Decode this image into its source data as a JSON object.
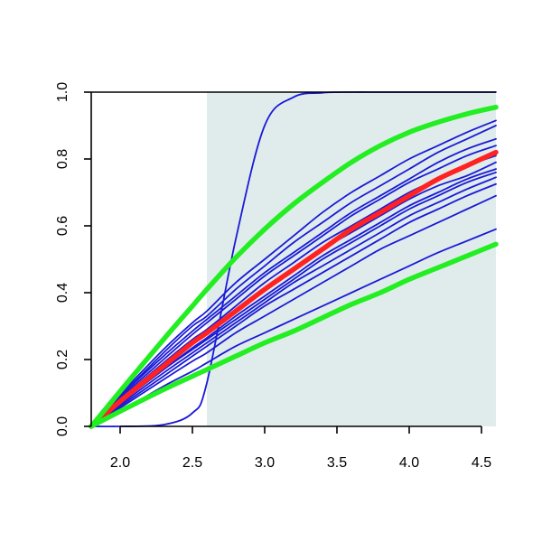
{
  "chart_data": {
    "type": "line",
    "title": "",
    "xlabel": "",
    "ylabel": "",
    "xlim": [
      1.8,
      4.6
    ],
    "ylim": [
      0.0,
      1.0
    ],
    "x_ticks": [
      2.0,
      2.5,
      3.0,
      3.5,
      4.0,
      4.5
    ],
    "x_tick_labels": [
      "2.0",
      "2.5",
      "3.0",
      "3.5",
      "4.0",
      "4.5"
    ],
    "y_ticks": [
      0.0,
      0.2,
      0.4,
      0.6,
      0.8,
      1.0
    ],
    "y_tick_labels": [
      "0.0",
      "0.2",
      "0.4",
      "0.6",
      "0.8",
      "1.0"
    ],
    "grid": false,
    "legend": "none",
    "shaded_region": {
      "x_start": 2.6,
      "x_end": 4.6,
      "color": "#e0ecec"
    },
    "colors": {
      "blue": "#1a1ad6",
      "red": "#ff2222",
      "green": "#22ee22",
      "axis": "#000000"
    },
    "x": [
      1.8,
      2.0,
      2.3,
      2.5,
      2.6,
      2.8,
      3.0,
      3.2,
      3.4,
      3.6,
      3.8,
      4.0,
      4.2,
      4.4,
      4.6
    ],
    "series": [
      {
        "color": "blue",
        "width": 1.8,
        "values": [
          0.0,
          0.09,
          0.21,
          0.285,
          0.32,
          0.39,
          0.46,
          0.52,
          0.58,
          0.64,
          0.69,
          0.74,
          0.79,
          0.83,
          0.86
        ]
      },
      {
        "color": "blue",
        "width": 1.8,
        "values": [
          0.0,
          0.085,
          0.2,
          0.275,
          0.31,
          0.38,
          0.45,
          0.51,
          0.57,
          0.63,
          0.68,
          0.73,
          0.77,
          0.81,
          0.84
        ]
      },
      {
        "color": "blue",
        "width": 1.8,
        "values": [
          0.0,
          0.09,
          0.22,
          0.3,
          0.33,
          0.41,
          0.48,
          0.55,
          0.61,
          0.67,
          0.72,
          0.77,
          0.82,
          0.86,
          0.9
        ]
      },
      {
        "color": "blue",
        "width": 1.8,
        "values": [
          0.0,
          0.095,
          0.23,
          0.31,
          0.345,
          0.43,
          0.5,
          0.57,
          0.64,
          0.7,
          0.75,
          0.8,
          0.84,
          0.88,
          0.915
        ]
      },
      {
        "color": "blue",
        "width": 1.8,
        "values": [
          0.0,
          0.08,
          0.19,
          0.26,
          0.29,
          0.36,
          0.43,
          0.49,
          0.55,
          0.6,
          0.65,
          0.7,
          0.74,
          0.78,
          0.81
        ]
      },
      {
        "color": "blue",
        "width": 1.8,
        "values": [
          0.0,
          0.075,
          0.18,
          0.25,
          0.28,
          0.35,
          0.41,
          0.47,
          0.53,
          0.58,
          0.63,
          0.68,
          0.72,
          0.75,
          0.79
        ]
      },
      {
        "color": "blue",
        "width": 1.8,
        "values": [
          0.0,
          0.07,
          0.17,
          0.235,
          0.265,
          0.33,
          0.39,
          0.45,
          0.51,
          0.56,
          0.61,
          0.66,
          0.7,
          0.74,
          0.77
        ]
      },
      {
        "color": "blue",
        "width": 1.8,
        "values": [
          0.0,
          0.07,
          0.17,
          0.23,
          0.26,
          0.32,
          0.38,
          0.44,
          0.5,
          0.55,
          0.6,
          0.65,
          0.69,
          0.73,
          0.76
        ]
      },
      {
        "color": "blue",
        "width": 1.8,
        "values": [
          0.0,
          0.065,
          0.16,
          0.22,
          0.25,
          0.31,
          0.37,
          0.43,
          0.48,
          0.53,
          0.58,
          0.63,
          0.67,
          0.71,
          0.745
        ]
      },
      {
        "color": "blue",
        "width": 1.8,
        "values": [
          0.0,
          0.06,
          0.15,
          0.21,
          0.24,
          0.3,
          0.36,
          0.41,
          0.46,
          0.51,
          0.56,
          0.61,
          0.65,
          0.69,
          0.725
        ]
      },
      {
        "color": "blue",
        "width": 1.8,
        "values": [
          0.0,
          0.055,
          0.14,
          0.195,
          0.22,
          0.28,
          0.33,
          0.38,
          0.43,
          0.48,
          0.53,
          0.57,
          0.61,
          0.65,
          0.69
        ]
      },
      {
        "color": "blue",
        "width": 1.8,
        "values": [
          0.0,
          0.045,
          0.12,
          0.165,
          0.19,
          0.24,
          0.28,
          0.32,
          0.36,
          0.4,
          0.44,
          0.48,
          0.52,
          0.555,
          0.59
        ]
      },
      {
        "color": "blue",
        "width": 1.8,
        "values": [
          0.0,
          0.0,
          0.005,
          0.04,
          0.13,
          0.56,
          0.9,
          0.985,
          0.998,
          1.0,
          1.0,
          1.0,
          1.0,
          1.0,
          1.0
        ]
      },
      {
        "color": "red",
        "width": 5.5,
        "values": [
          0.0,
          0.075,
          0.18,
          0.25,
          0.28,
          0.345,
          0.41,
          0.47,
          0.53,
          0.59,
          0.64,
          0.69,
          0.74,
          0.78,
          0.82
        ]
      },
      {
        "color": "green",
        "width": 5.5,
        "values": [
          0.0,
          0.105,
          0.26,
          0.36,
          0.41,
          0.505,
          0.59,
          0.665,
          0.73,
          0.79,
          0.84,
          0.88,
          0.91,
          0.935,
          0.955
        ]
      },
      {
        "color": "green",
        "width": 5.5,
        "values": [
          0.0,
          0.045,
          0.11,
          0.15,
          0.17,
          0.21,
          0.25,
          0.285,
          0.325,
          0.365,
          0.4,
          0.44,
          0.475,
          0.51,
          0.545
        ]
      }
    ]
  }
}
